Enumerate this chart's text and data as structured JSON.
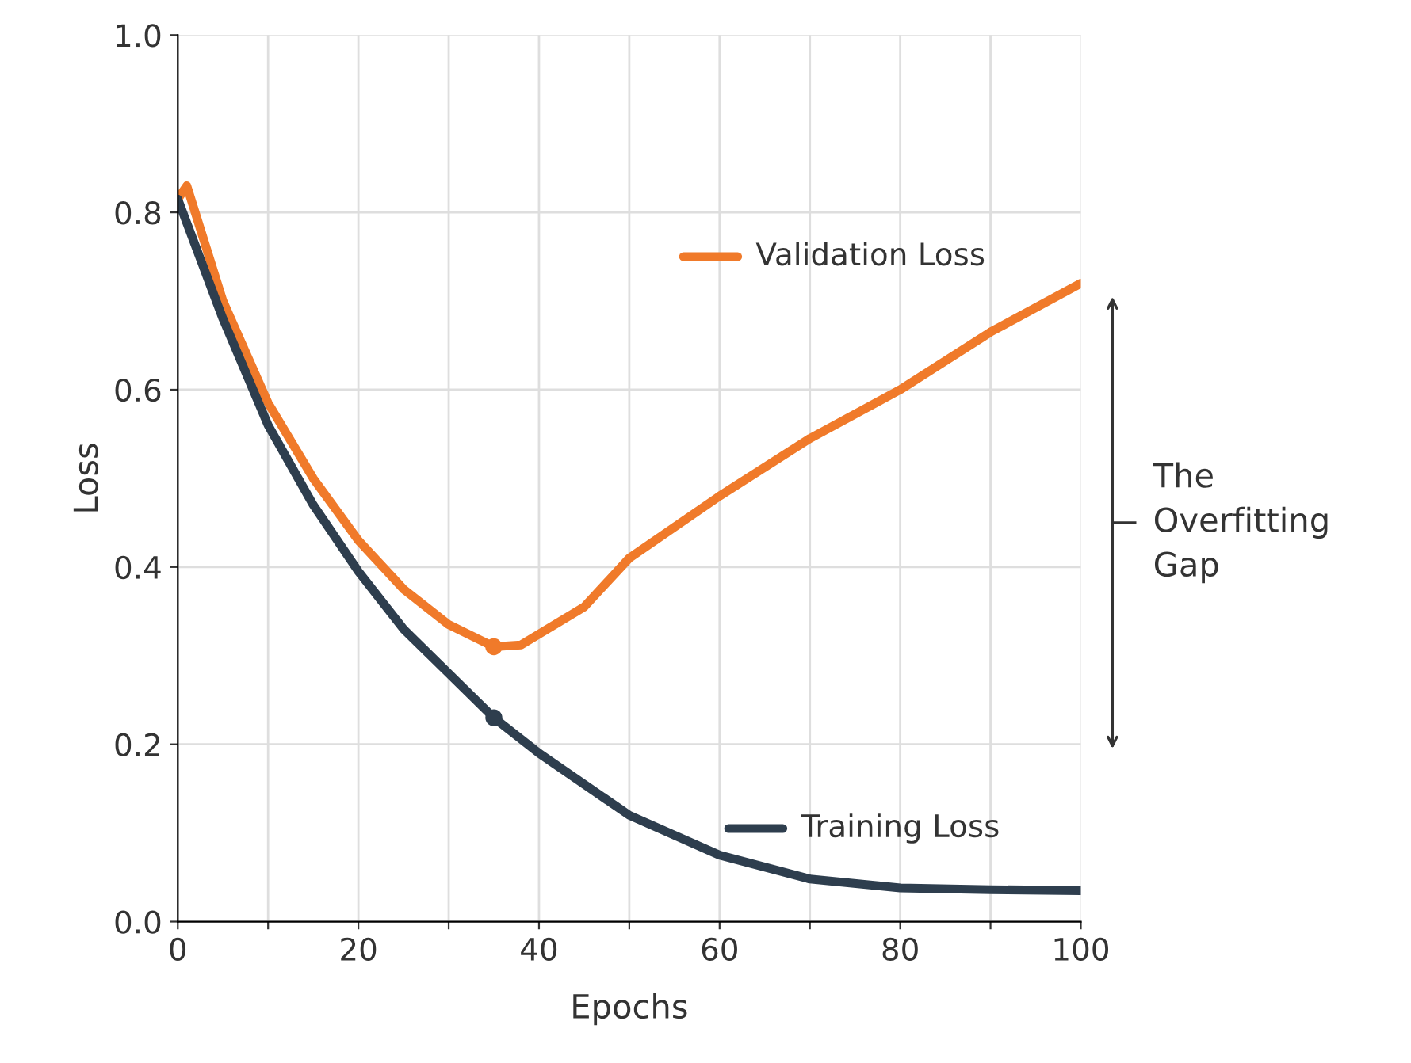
{
  "chart_data": {
    "type": "line",
    "xlabel": "Epochs",
    "ylabel": "Loss",
    "xlim": [
      0,
      100
    ],
    "ylim": [
      0,
      1.0
    ],
    "xticks": [
      0,
      {
        "value": 10,
        "label": null
      },
      20,
      {
        "value": 30,
        "label": null
      },
      40,
      {
        "value": 50,
        "label": null
      },
      60,
      {
        "value": 70,
        "label": null
      },
      80,
      {
        "value": 90,
        "label": null
      },
      100
    ],
    "yticks": [
      {
        "value": 0,
        "label": "0.0"
      },
      0.2,
      0.4,
      0.6,
      0.8,
      {
        "value": 1,
        "label": "1.0"
      }
    ],
    "grid": true,
    "legend": "right",
    "line_style": "solid",
    "annotations": [
      "The\nOverfitting\nGap"
    ],
    "series": [
      {
        "name": "Validation Loss",
        "color": "#f07a2a",
        "x": [
          0,
          1,
          5,
          10,
          15,
          20,
          25,
          30,
          35,
          38,
          45,
          50,
          60,
          70,
          80,
          90,
          100
        ],
        "values": [
          0.815,
          0.83,
          0.7,
          0.585,
          0.5,
          0.43,
          0.375,
          0.335,
          0.31,
          0.312,
          0.355,
          0.41,
          0.48,
          0.545,
          0.6,
          0.665,
          0.72
        ]
      },
      {
        "name": "Training Loss",
        "color": "#2e3e4e",
        "x": [
          0,
          5,
          10,
          15,
          20,
          25,
          30,
          35,
          40,
          50,
          60,
          70,
          80,
          90,
          100
        ],
        "values": [
          0.815,
          0.68,
          0.56,
          0.47,
          0.395,
          0.33,
          0.28,
          0.23,
          0.19,
          0.12,
          0.075,
          0.048,
          0.038,
          0.036,
          0.035
        ]
      },
      {
        "type": "scatter",
        "marker": "circle",
        "color": "#f07a2a",
        "x": [
          35
        ],
        "values": [
          0.31
        ]
      },
      {
        "type": "scatter",
        "marker": "circle",
        "color": "#2e3e4e",
        "x": [
          35
        ],
        "values": [
          0.23
        ]
      }
    ]
  }
}
